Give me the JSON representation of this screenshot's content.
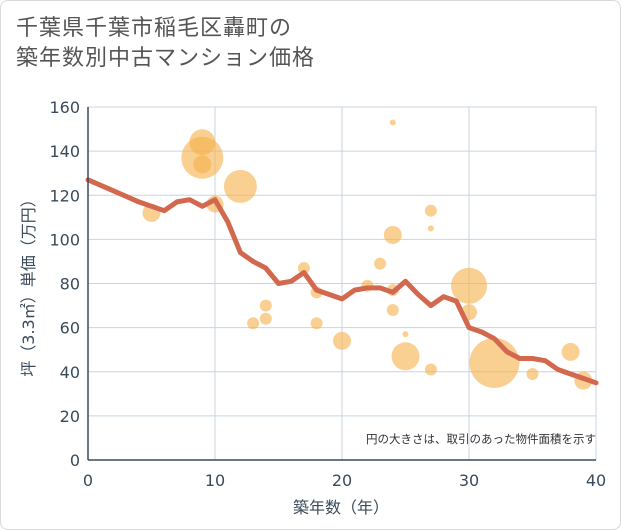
{
  "title_line1": "千葉県千葉市稲毛区轟町の",
  "title_line2": "築年数別中古マンション価格",
  "chart_data": {
    "type": "scatter",
    "xlabel": "築年数（年）",
    "ylabel": "坪（3.3㎡）単価（万円）",
    "xlim": [
      0,
      40
    ],
    "ylim": [
      0,
      160
    ],
    "xticks": [
      0,
      10,
      20,
      30,
      40
    ],
    "yticks": [
      0,
      20,
      40,
      60,
      80,
      100,
      120,
      140,
      160
    ],
    "grid": true,
    "annotation": "円の大きさは、取引のあった物件面積を示す",
    "colors": {
      "bubble": "#f5b04a",
      "line": "#d2694f",
      "grid": "#c8d4e0",
      "axis": "#3a4a5a"
    },
    "bubbles": [
      {
        "x": 5,
        "y": 112,
        "size": 1.8
      },
      {
        "x": 9,
        "y": 144,
        "size": 2.6
      },
      {
        "x": 9,
        "y": 137,
        "size": 4.2
      },
      {
        "x": 9,
        "y": 134,
        "size": 1.8
      },
      {
        "x": 10,
        "y": 116,
        "size": 1.7
      },
      {
        "x": 12,
        "y": 124,
        "size": 3.3
      },
      {
        "x": 13,
        "y": 62,
        "size": 1.2
      },
      {
        "x": 14,
        "y": 70,
        "size": 1.2
      },
      {
        "x": 14,
        "y": 64,
        "size": 1.2
      },
      {
        "x": 17,
        "y": 87,
        "size": 1.2
      },
      {
        "x": 18,
        "y": 62,
        "size": 1.2
      },
      {
        "x": 18,
        "y": 76,
        "size": 1.2
      },
      {
        "x": 20,
        "y": 54,
        "size": 1.8
      },
      {
        "x": 22,
        "y": 79,
        "size": 1.2
      },
      {
        "x": 23,
        "y": 89,
        "size": 1.2
      },
      {
        "x": 24,
        "y": 153,
        "size": 0.6
      },
      {
        "x": 24,
        "y": 102,
        "size": 1.8
      },
      {
        "x": 24,
        "y": 77,
        "size": 1.2
      },
      {
        "x": 24,
        "y": 68,
        "size": 1.2
      },
      {
        "x": 25,
        "y": 57,
        "size": 0.6
      },
      {
        "x": 25,
        "y": 47,
        "size": 2.8
      },
      {
        "x": 27,
        "y": 113,
        "size": 1.2
      },
      {
        "x": 27,
        "y": 105,
        "size": 0.6
      },
      {
        "x": 27,
        "y": 41,
        "size": 1.2
      },
      {
        "x": 30,
        "y": 79,
        "size": 3.6
      },
      {
        "x": 30,
        "y": 67,
        "size": 1.6
      },
      {
        "x": 32,
        "y": 44,
        "size": 5.0
      },
      {
        "x": 35,
        "y": 39,
        "size": 1.2
      },
      {
        "x": 38,
        "y": 49,
        "size": 1.8
      },
      {
        "x": 39,
        "y": 36,
        "size": 1.8
      }
    ],
    "trend": {
      "x": [
        0,
        2,
        4,
        6,
        7,
        8,
        9,
        10,
        11,
        12,
        13,
        14,
        15,
        16,
        17,
        18,
        19,
        20,
        21,
        22,
        23,
        24,
        25,
        26,
        27,
        28,
        29,
        30,
        31,
        32,
        33,
        34,
        35,
        36,
        37,
        38,
        39,
        40
      ],
      "y": [
        127,
        122,
        117,
        113,
        117,
        118,
        115,
        118,
        108,
        94,
        90,
        87,
        80,
        81,
        85,
        77,
        75,
        73,
        77,
        78,
        78,
        76,
        81,
        75,
        70,
        74,
        72,
        60,
        58,
        55,
        49,
        46,
        46,
        45,
        41,
        39,
        37,
        35
      ]
    }
  }
}
